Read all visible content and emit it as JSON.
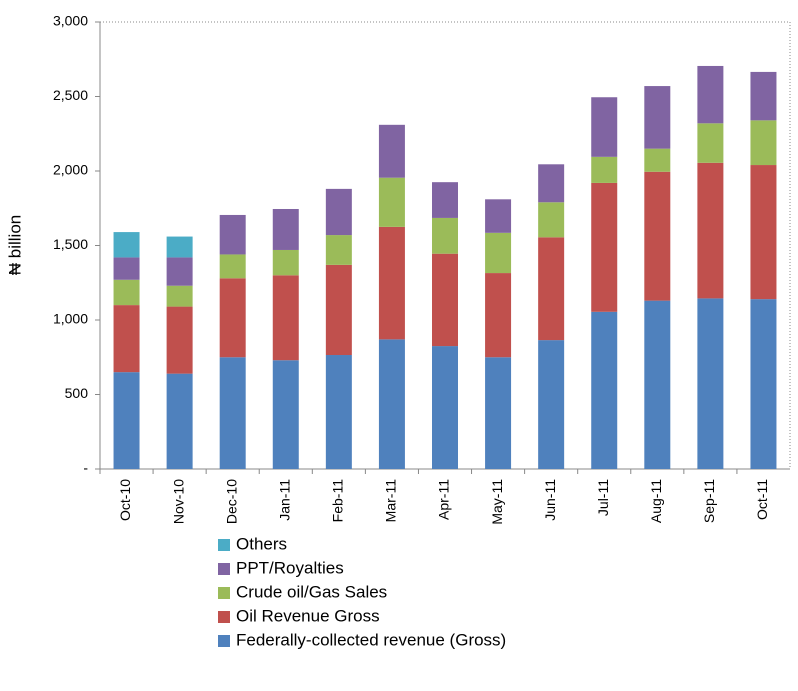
{
  "chart_data": {
    "type": "stacked_bar",
    "y_label": "₦ billion",
    "categories": [
      "Oct-10",
      "Nov-10",
      "Dec-10",
      "Jan-11",
      "Feb-11",
      "Mar-11",
      "Apr-11",
      "May-11",
      "Jun-11",
      "Jul-11",
      "Aug-11",
      "Sep-11",
      "Oct-11"
    ],
    "series": [
      {
        "name": "Federally-collected revenue (Gross)",
        "color": "#4f81bd",
        "values": [
          650,
          640,
          750,
          730,
          765,
          870,
          825,
          750,
          865,
          1055,
          1130,
          1145,
          1140
        ]
      },
      {
        "name": "Oil Revenue Gross",
        "color": "#c0504d",
        "values": [
          450,
          450,
          530,
          570,
          605,
          755,
          620,
          565,
          690,
          865,
          865,
          910,
          900
        ]
      },
      {
        "name": "Crude oil/Gas Sales",
        "color": "#9bbb59",
        "values": [
          170,
          140,
          160,
          170,
          200,
          330,
          240,
          270,
          235,
          175,
          155,
          265,
          300
        ]
      },
      {
        "name": "PPT/Royalties",
        "color": "#8064a2",
        "values": [
          150,
          190,
          265,
          275,
          310,
          355,
          240,
          225,
          255,
          400,
          420,
          385,
          325
        ]
      },
      {
        "name": "Others",
        "color": "#4bacc6",
        "values": [
          170,
          140,
          0,
          0,
          0,
          0,
          0,
          0,
          0,
          0,
          0,
          0,
          0
        ]
      }
    ],
    "ylim": [
      0,
      3000
    ],
    "yticks": [
      {
        "value": 0,
        "label": "-"
      },
      500,
      {
        "value": 1000,
        "label": "1,000"
      },
      {
        "value": 1500,
        "label": "1,500"
      },
      {
        "value": 2000,
        "label": "2,000"
      },
      {
        "value": 2500,
        "label": "2,500"
      },
      {
        "value": 3000,
        "label": "3,000"
      }
    ],
    "grid": false
  }
}
